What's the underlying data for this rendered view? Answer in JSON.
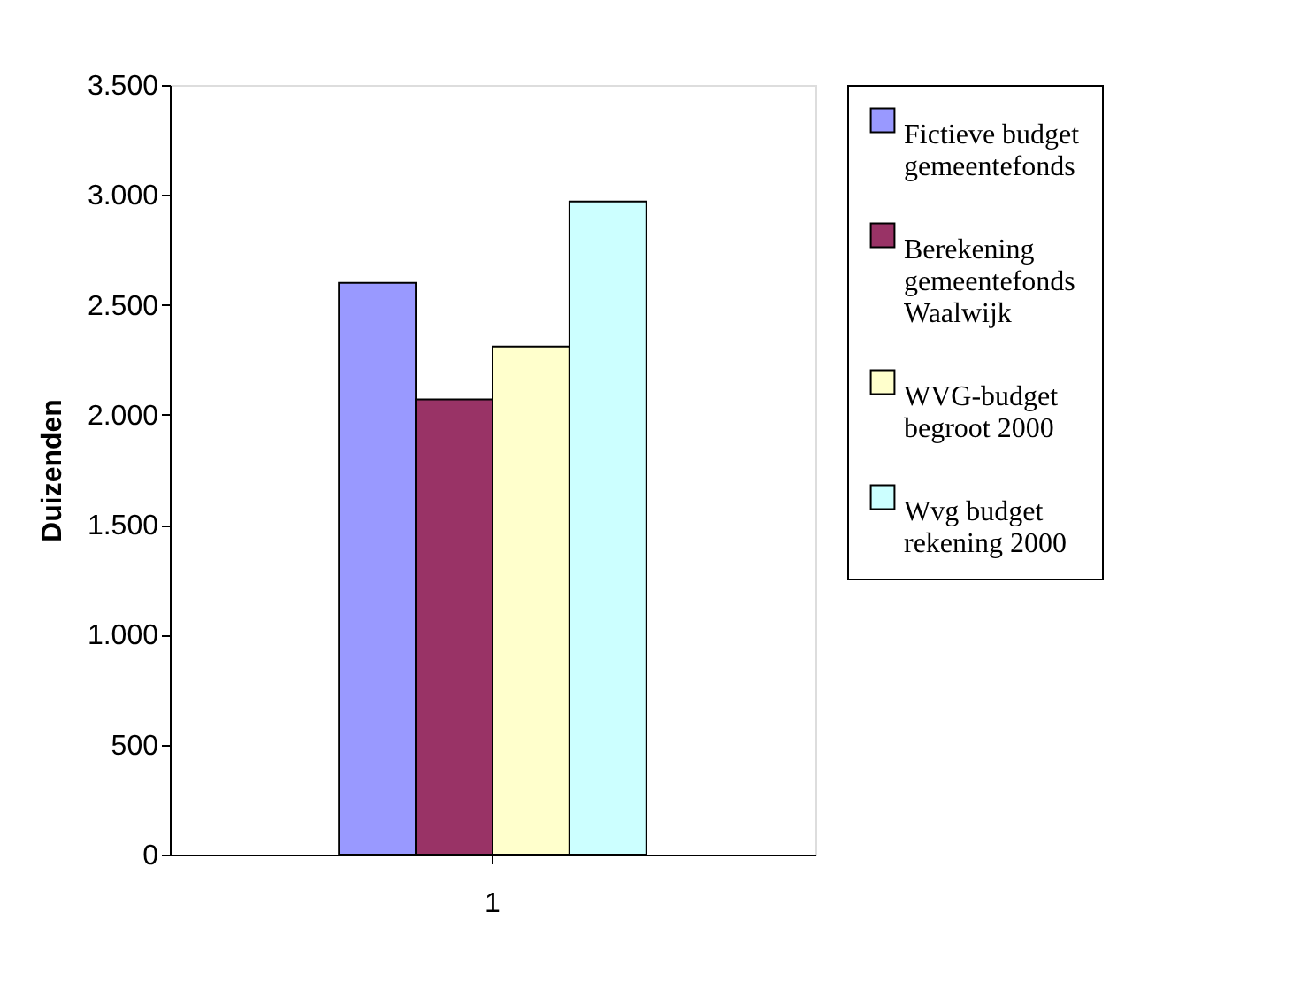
{
  "chart_data": {
    "type": "bar",
    "ylabel": "Duizenden",
    "categories": [
      "1"
    ],
    "series": [
      {
        "name": "Fictieve budget gemeentefonds",
        "color": "#9999ff",
        "values": [
          2600
        ]
      },
      {
        "name": "Berekening gemeentefonds Waalwijk",
        "color": "#993366",
        "values": [
          2070
        ]
      },
      {
        "name": "WVG-budget begroot 2000",
        "color": "#ffffcc",
        "values": [
          2310
        ]
      },
      {
        "name": "Wvg budget rekening 2000",
        "color": "#ccffff",
        "values": [
          2970
        ]
      }
    ],
    "ylim": [
      0,
      3500
    ],
    "yticks": [
      0,
      500,
      {
        "value": 1000,
        "label": "1.000"
      },
      {
        "value": 1500,
        "label": "1.500"
      },
      {
        "value": 2000,
        "label": "2.000"
      },
      {
        "value": 2500,
        "label": "2.500"
      },
      {
        "value": 3000,
        "label": "3.000"
      },
      {
        "value": 3500,
        "label": "3.500"
      }
    ],
    "grid": false,
    "legend": "right"
  }
}
